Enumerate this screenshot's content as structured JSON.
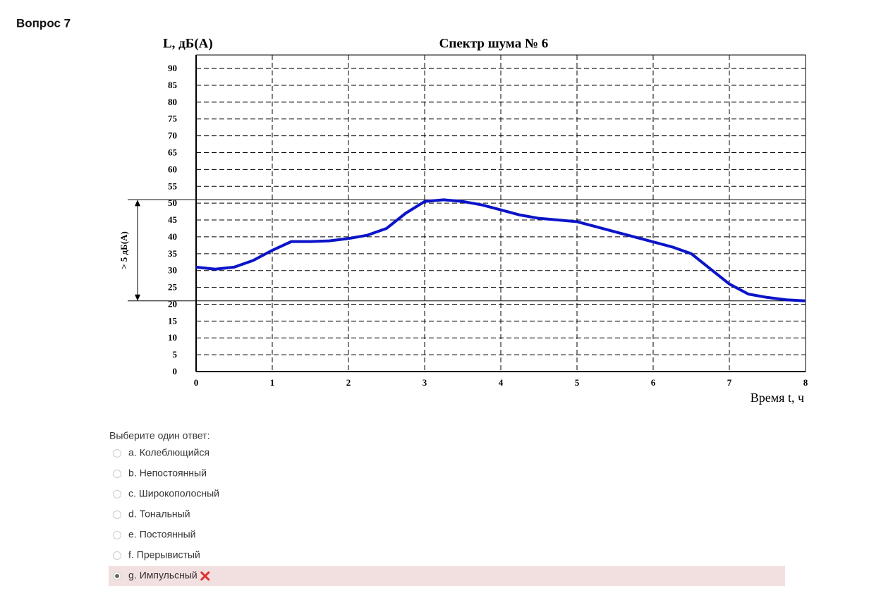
{
  "question": "Вопрос 7",
  "chart_data": {
    "type": "line",
    "title": "Спектр шума № 6",
    "y_label": "L, дБ(А)",
    "x_label": "Время t, ч",
    "x": [
      0,
      0.25,
      0.5,
      0.75,
      1,
      1.25,
      1.5,
      1.75,
      2,
      2.25,
      2.5,
      2.75,
      3,
      3.25,
      3.5,
      3.75,
      4,
      4.25,
      4.5,
      4.75,
      5,
      5.25,
      5.5,
      5.75,
      6,
      6.25,
      6.5,
      6.75,
      7,
      7.25,
      7.5,
      7.75,
      8
    ],
    "series": [
      {
        "color": "#0b14c8",
        "values": [
          31,
          30.4,
          31,
          33,
          36,
          38.6,
          38.6,
          38.8,
          39.5,
          40.5,
          42.5,
          47,
          50.5,
          51,
          50.5,
          49.5,
          48,
          46.5,
          45.5,
          45,
          44.5,
          43,
          41.5,
          40,
          38.5,
          37,
          35,
          30.5,
          26,
          23,
          22,
          21.3,
          21
        ]
      }
    ],
    "xlim": [
      0,
      8
    ],
    "xticks": [
      0,
      1,
      2,
      3,
      4,
      5,
      6,
      7,
      8
    ],
    "ylim": [
      0,
      94
    ],
    "yticks": [
      0,
      5,
      10,
      15,
      20,
      25,
      30,
      35,
      40,
      45,
      50,
      55,
      60,
      65,
      70,
      75,
      80,
      85,
      90
    ],
    "grid": true,
    "reference_lines": [
      51,
      21
    ],
    "annotation": "> 5 дБ(А)"
  },
  "answer_prompt": "Выберите один ответ:",
  "options": [
    {
      "letter": "a.",
      "text": "Колеблющийся",
      "selected": false
    },
    {
      "letter": "b.",
      "text": "Непостоянный",
      "selected": false
    },
    {
      "letter": "c.",
      "text": "Широкополосный",
      "selected": false
    },
    {
      "letter": "d.",
      "text": "Тональный",
      "selected": false
    },
    {
      "letter": "e.",
      "text": "Постоянный",
      "selected": false
    },
    {
      "letter": "f.",
      "text": "Прерывистый",
      "selected": false
    },
    {
      "letter": "g.",
      "text": "Импульсный",
      "selected": true
    }
  ]
}
